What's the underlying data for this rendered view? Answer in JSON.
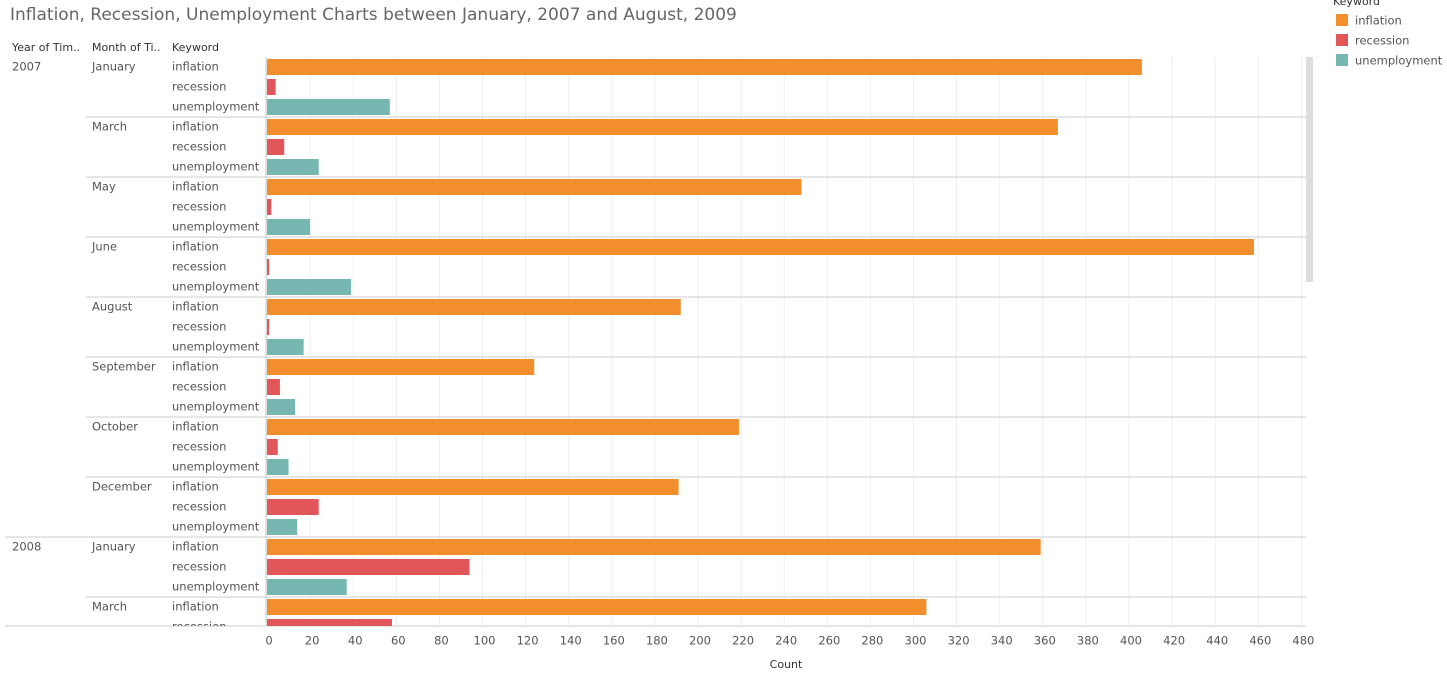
{
  "chart_data": {
    "type": "bar",
    "title": "Inflation, Recession, Unemployment Charts between January, 2007 and August, 2009",
    "row_headers": [
      "Year of Tim..",
      "Month of Ti..",
      "Keyword"
    ],
    "years": [
      "2007",
      null,
      null,
      null,
      null,
      null,
      null,
      null,
      "2008",
      null
    ],
    "categories": [
      "January",
      "March",
      "May",
      "June",
      "August",
      "September",
      "October",
      "December",
      "January",
      "March"
    ],
    "series": [
      {
        "name": "inflation",
        "color": "#f28e2b",
        "values": [
          406,
          367,
          248,
          458,
          192,
          124,
          219,
          191,
          359,
          306
        ]
      },
      {
        "name": "recession",
        "color": "#e15759",
        "values": [
          4,
          8,
          2,
          1,
          1,
          6,
          5,
          24,
          94,
          58
        ]
      },
      {
        "name": "unemployment",
        "color": "#76b7b2",
        "values": [
          57,
          24,
          20,
          39,
          17,
          13,
          10,
          14,
          37,
          null
        ]
      }
    ],
    "legend_title": "Keyword",
    "x_label": "Count",
    "xlim": [
      0,
      480
    ],
    "xticks": [
      0,
      20,
      40,
      60,
      80,
      100,
      120,
      140,
      160,
      180,
      200,
      220,
      240,
      260,
      280,
      300,
      320,
      340,
      360,
      380,
      400,
      420,
      440,
      460,
      480
    ],
    "grid": true
  }
}
